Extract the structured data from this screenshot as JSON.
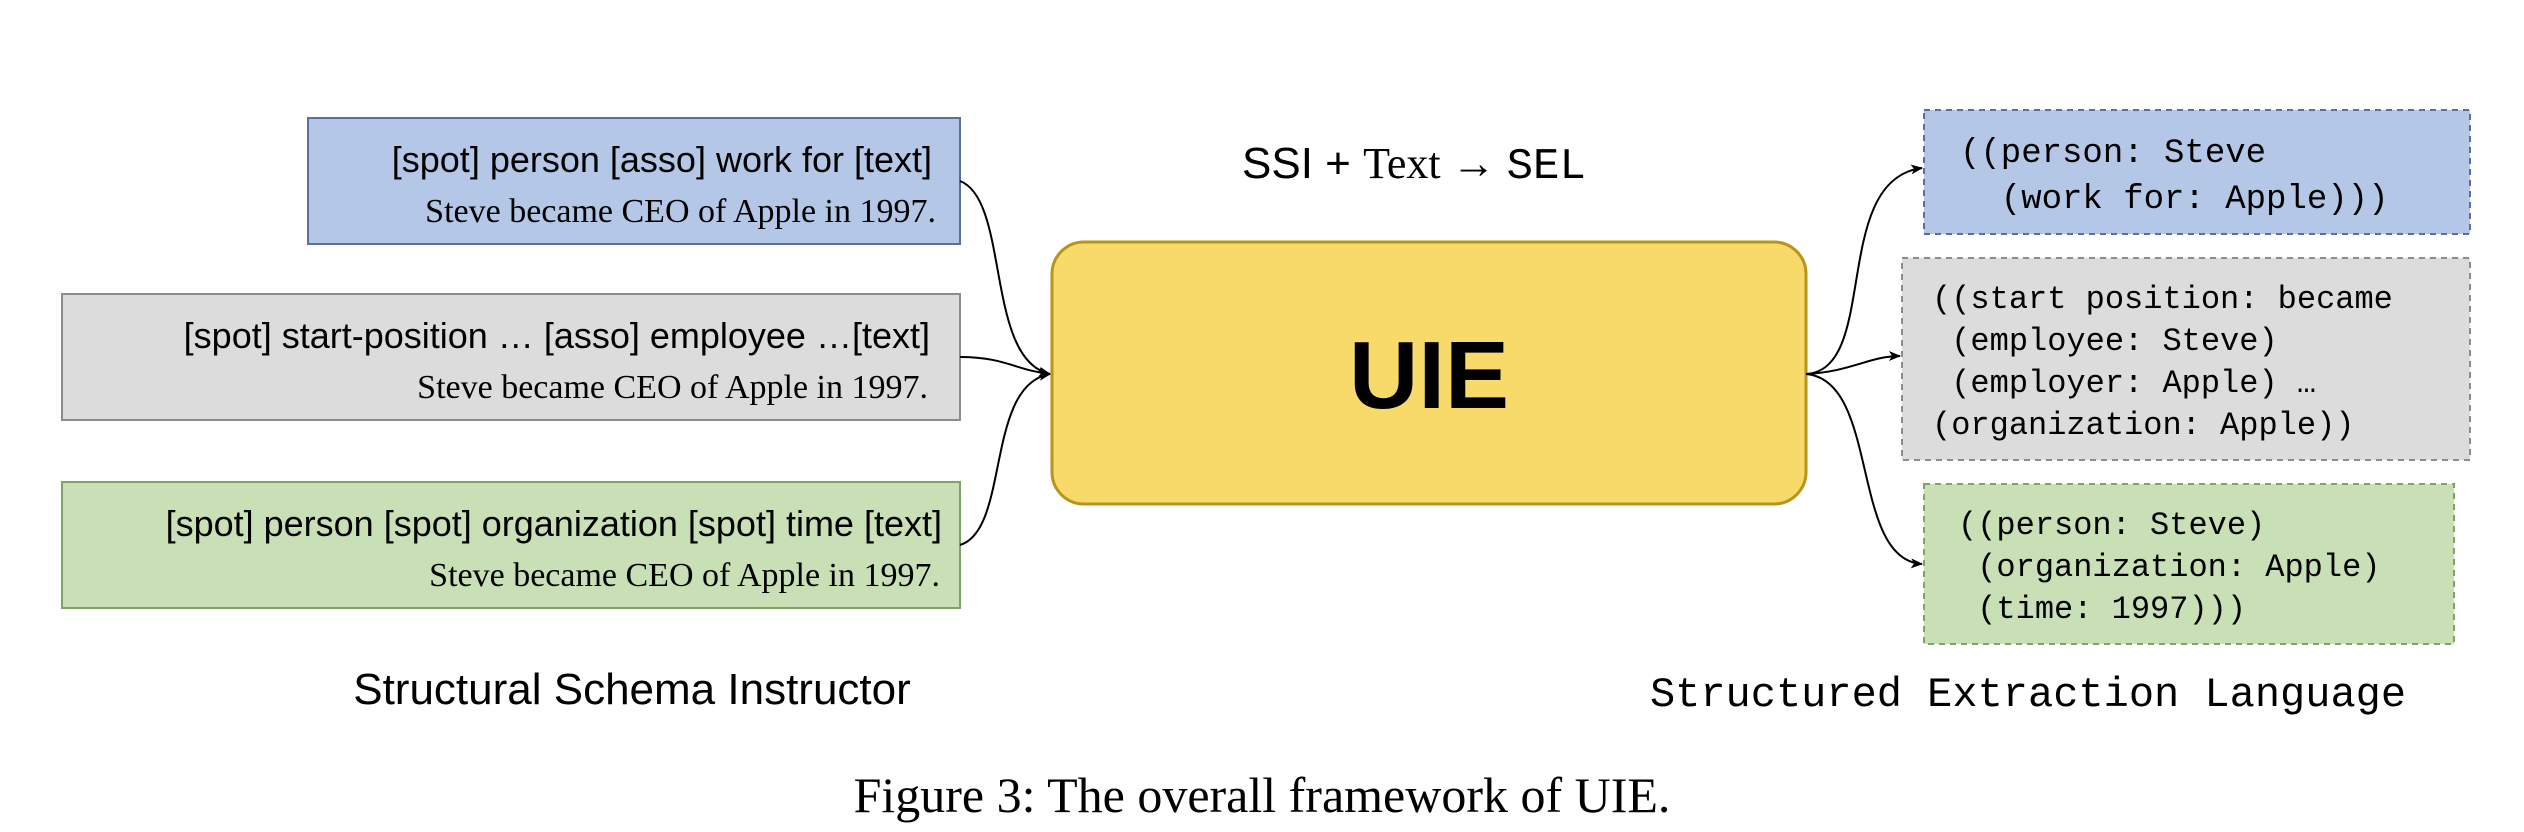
{
  "inputs": [
    {
      "schema": "[spot] person [asso] work for [text]",
      "text": "Steve became CEO of Apple in 1997.",
      "fill": "#b4c7e7",
      "stroke": "#5a6f9e"
    },
    {
      "schema": "[spot] start-position … [asso] employee …[text]",
      "text": "Steve became CEO of Apple in 1997.",
      "fill": "#dcdcdc",
      "stroke": "#8c8c8c"
    },
    {
      "schema": "[spot] person [spot] organization [spot] time [text]",
      "text": "Steve became CEO of Apple in 1997.",
      "fill": "#c9dfb5",
      "stroke": "#7ea36a"
    }
  ],
  "center": {
    "label": "UIE",
    "fill": "#f7da6a",
    "stroke": "#b8951a"
  },
  "formula": {
    "prefix": "SSI + ",
    "text_word": "Text",
    "arrow": " → ",
    "sel": "SEL"
  },
  "outputs": [
    {
      "lines": [
        "((person: Steve",
        "  (work for: Apple)))"
      ],
      "fill": "#b4c7e7",
      "stroke": "#5a6f9e"
    },
    {
      "lines": [
        "((start position: became",
        " (employee: Steve)",
        " (employer: Apple) …",
        "(organization: Apple))"
      ],
      "fill": "#dcdcdc",
      "stroke": "#8c8c8c"
    },
    {
      "lines": [
        "((person: Steve)",
        " (organization: Apple)",
        " (time: 1997)))"
      ],
      "fill": "#c9dfb5",
      "stroke": "#7ea36a"
    }
  ],
  "captions": {
    "left": "Structural Schema Instructor",
    "right": "Structured Extraction Language",
    "figure": "Figure 3: The overall framework of UIE."
  }
}
